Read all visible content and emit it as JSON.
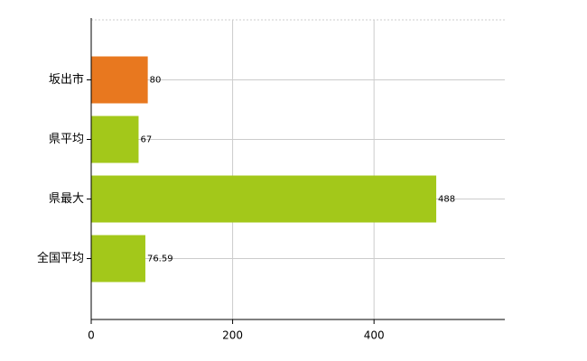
{
  "chart_data": {
    "type": "bar",
    "orientation": "horizontal",
    "categories": [
      "坂出市",
      "県平均",
      "県最大",
      "全国平均"
    ],
    "values": [
      80,
      67,
      488,
      76.59
    ],
    "colors": [
      "#e8781f",
      "#a3c81a",
      "#a3c81a",
      "#a3c81a"
    ],
    "xlim": [
      0,
      585
    ],
    "xticks": [
      0,
      200,
      400
    ],
    "grid": true
  }
}
